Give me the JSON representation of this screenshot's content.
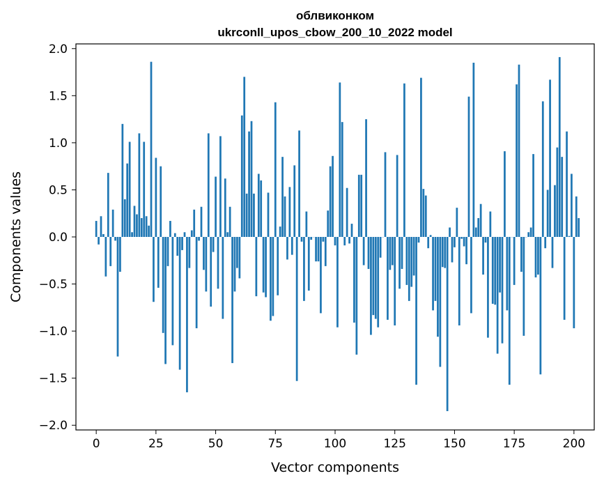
{
  "chart_data": {
    "type": "bar",
    "title": "облвиконком",
    "subtitle": "ukrconll_upos_cbow_200_10_2022 model",
    "xlabel": "Vector components",
    "ylabel": "Components values",
    "xlim": [
      -8.5,
      208.5
    ],
    "ylim": [
      -2.05,
      2.05
    ],
    "xticks": [
      0,
      25,
      50,
      75,
      100,
      125,
      150,
      175,
      200
    ],
    "yticks": [
      -2.0,
      -1.5,
      -1.0,
      -0.5,
      0.0,
      0.5,
      1.0,
      1.5,
      2.0
    ],
    "xtick_labels": [
      "0",
      "25",
      "50",
      "75",
      "100",
      "125",
      "150",
      "175",
      "200"
    ],
    "ytick_labels": [
      "−2.0",
      "−1.5",
      "−1.0",
      "−0.5",
      "0.0",
      "0.5",
      "1.0",
      "1.5",
      "2.0"
    ],
    "bar_color": "#1f77b4",
    "values": [
      0.17,
      -0.08,
      0.22,
      0.03,
      -0.42,
      0.68,
      -0.31,
      0.29,
      -0.04,
      -1.27,
      -0.37,
      1.2,
      0.4,
      0.78,
      1.01,
      0.05,
      0.33,
      0.24,
      1.1,
      0.2,
      1.01,
      0.22,
      0.12,
      1.86,
      -0.69,
      0.84,
      -0.54,
      0.75,
      -1.02,
      -1.35,
      -0.31,
      0.17,
      -1.15,
      0.04,
      -0.2,
      -1.41,
      -0.14,
      0.05,
      -1.65,
      -0.33,
      0.07,
      0.29,
      -0.97,
      -0.04,
      0.32,
      -0.35,
      -0.58,
      1.1,
      -0.74,
      -0.16,
      0.64,
      -0.55,
      1.07,
      -0.87,
      0.62,
      0.05,
      0.32,
      -1.34,
      -0.58,
      -0.33,
      -0.44,
      1.29,
      1.7,
      0.46,
      1.12,
      1.23,
      0.46,
      -0.63,
      0.67,
      0.6,
      -0.59,
      -0.64,
      0.47,
      -0.89,
      -0.84,
      1.43,
      -0.62,
      0.11,
      0.85,
      0.43,
      -0.24,
      0.53,
      -0.19,
      0.76,
      -1.53,
      1.13,
      -0.05,
      -0.68,
      0.27,
      -0.57,
      -0.03,
      0.0,
      -0.26,
      -0.26,
      -0.81,
      -0.05,
      -0.31,
      0.28,
      0.75,
      0.86,
      -0.09,
      -0.96,
      1.64,
      1.22,
      -0.09,
      0.52,
      -0.07,
      0.14,
      -0.91,
      -1.25,
      0.66,
      0.66,
      -0.3,
      1.25,
      -0.34,
      -1.04,
      -0.83,
      -0.87,
      -0.96,
      -0.22,
      0.0,
      0.9,
      -0.88,
      -0.35,
      -0.3,
      -0.94,
      0.87,
      -0.55,
      -0.34,
      1.63,
      -0.51,
      -0.68,
      -0.53,
      -0.41,
      -1.57,
      -0.06,
      1.69,
      0.51,
      0.44,
      -0.12,
      0.02,
      -0.78,
      -0.68,
      -1.06,
      -1.38,
      -0.32,
      -0.33,
      -1.85,
      0.1,
      -0.27,
      -0.11,
      0.31,
      -0.94,
      -0.02,
      -0.1,
      -0.29,
      1.49,
      -0.81,
      1.85,
      0.1,
      0.2,
      0.35,
      -0.4,
      -0.06,
      -1.07,
      0.27,
      -0.71,
      -0.72,
      -1.24,
      -0.59,
      -1.13,
      0.91,
      -0.78,
      -1.57,
      0.0,
      -0.51,
      1.62,
      1.83,
      -0.37,
      -1.05,
      0.0,
      0.05,
      0.1,
      0.88,
      -0.43,
      -0.4,
      -1.46,
      1.44,
      -0.12,
      0.5,
      1.67,
      -0.33,
      0.55,
      0.95,
      1.91,
      0.85,
      -0.88,
      1.12,
      0.01,
      0.67,
      -0.97,
      0.43,
      0.2
    ]
  }
}
